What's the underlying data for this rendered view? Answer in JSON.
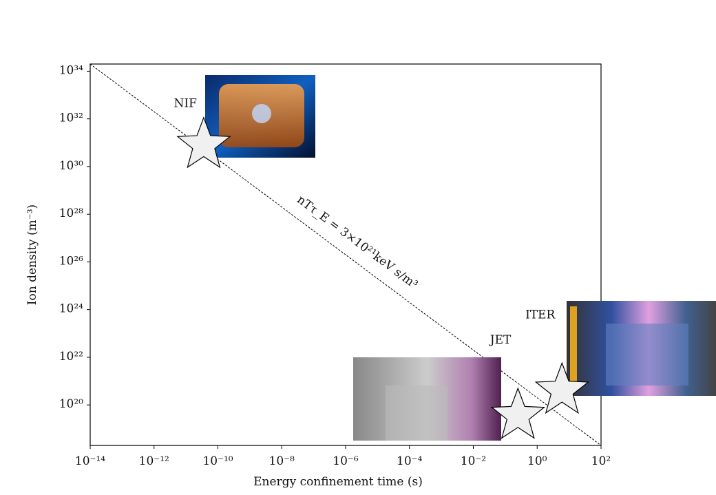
{
  "chart_data": {
    "type": "scatter",
    "xlabel": "Energy confinement time (s)",
    "ylabel": "Ion density (m⁻³)",
    "log_x": true,
    "log_y": true,
    "xlim": [
      1e-14,
      100
    ],
    "ylim": [
      2e+18,
      2e+34
    ],
    "xticks": [
      {
        "value": 1e-14,
        "label": "10⁻¹⁴"
      },
      {
        "value": 1e-12,
        "label": "10⁻¹²"
      },
      {
        "value": 1e-10,
        "label": "10⁻¹⁰"
      },
      {
        "value": 1e-08,
        "label": "10⁻⁸"
      },
      {
        "value": 1e-06,
        "label": "10⁻⁶"
      },
      {
        "value": 0.0001,
        "label": "10⁻⁴"
      },
      {
        "value": 0.01,
        "label": "10⁻²"
      },
      {
        "value": 1,
        "label": "10⁰"
      },
      {
        "value": 100,
        "label": "10²"
      }
    ],
    "yticks": [
      {
        "value": 1e+20,
        "label": "10²⁰"
      },
      {
        "value": 1e+22,
        "label": "10²²"
      },
      {
        "value": 1e+24,
        "label": "10²⁴"
      },
      {
        "value": 1e+26,
        "label": "10²⁶"
      },
      {
        "value": 1e+28,
        "label": "10²⁸"
      },
      {
        "value": 1e+30,
        "label": "10³⁰"
      },
      {
        "value": 1e+32,
        "label": "10³²"
      },
      {
        "value": 1e+34,
        "label": "10³⁴"
      }
    ],
    "marker_color": "#f0f0f0",
    "points": [
      {
        "label": "NIF",
        "x": 3.6e-11,
        "y": 8e+30
      },
      {
        "label": "JET",
        "x": 0.25,
        "y": 3.5e+19
      },
      {
        "label": "ITER",
        "x": 6,
        "y": 4e+20
      }
    ],
    "reference_line": {
      "label": "nTτ_E = 3×10²¹keV s/m³",
      "x": [
        1e-14,
        100
      ],
      "y": [
        2e+34,
        2e+18
      ]
    }
  }
}
